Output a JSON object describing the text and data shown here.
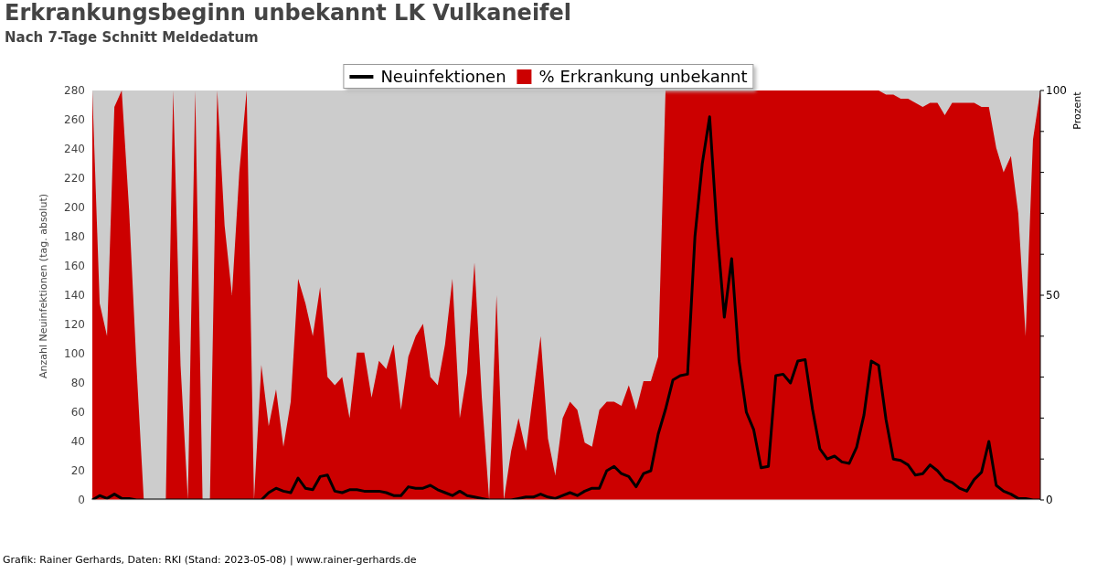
{
  "chart_data": {
    "type": "line",
    "title": "Erkrankungsbeginn unbekannt LK Vulkaneifel",
    "subtitle": "Nach 7-Tage Schnitt Meldedatum",
    "ylabel": "Anzahl Neuinfektionen (tag. absolut)",
    "y2label": "Prozent",
    "categories": [
      null,
      null,
      null,
      null,
      null,
      null,
      null,
      null,
      null,
      null,
      null,
      null,
      null,
      null,
      null,
      null,
      null,
      null,
      null,
      null,
      null,
      null,
      null,
      null,
      null,
      null,
      null,
      null,
      null,
      null,
      null,
      null,
      null,
      null,
      null,
      null,
      null,
      null,
      null,
      null,
      null,
      null,
      null,
      null,
      null,
      null,
      null,
      null,
      null,
      null,
      null,
      null,
      null,
      null,
      null,
      null,
      null,
      null,
      null,
      null,
      null,
      null,
      null,
      null,
      null,
      null,
      null,
      null,
      null,
      null,
      null,
      null,
      null,
      null,
      null,
      null,
      null,
      null,
      null,
      null,
      null,
      null,
      null,
      null,
      null,
      null,
      null,
      null,
      null,
      null,
      null,
      null,
      null,
      null,
      null,
      null,
      null,
      null,
      null,
      null,
      null,
      null,
      null,
      null,
      null,
      null,
      null,
      null,
      null,
      null,
      null,
      null,
      null,
      null,
      null,
      null,
      null,
      null,
      null,
      null,
      null,
      null,
      null,
      null,
      null,
      null,
      null,
      null,
      null,
      null
    ],
    "series": [
      {
        "name": "% Erkrankung unbekannt",
        "type": "area",
        "axis": "y2",
        "color": "#cc0000",
        "values": [
          100,
          48,
          40,
          96,
          100,
          71,
          33,
          0,
          0,
          0,
          0,
          100,
          33,
          0,
          100,
          0,
          0,
          100,
          67,
          50,
          80,
          100,
          0,
          33,
          18,
          27,
          13,
          24,
          54,
          48,
          40,
          52,
          30,
          28,
          30,
          20,
          36,
          36,
          25,
          34,
          32,
          38,
          22,
          35,
          40,
          43,
          30,
          28,
          38,
          54,
          20,
          31,
          58,
          25,
          0,
          50,
          0,
          12,
          20,
          12,
          26,
          40,
          15,
          6,
          20,
          24,
          22,
          14,
          13,
          22,
          24,
          24,
          23,
          28,
          22,
          29,
          29,
          35,
          100,
          100,
          100,
          100,
          100,
          100,
          100,
          100,
          100,
          100,
          100,
          100,
          100,
          100,
          100,
          100,
          100,
          100,
          100,
          100,
          100,
          100,
          100,
          100,
          100,
          100,
          100,
          100,
          100,
          100,
          99,
          99,
          98,
          98,
          97,
          96,
          97,
          97,
          94,
          97,
          97,
          97,
          97,
          96,
          96,
          86,
          80,
          84,
          70,
          40,
          88,
          100
        ]
      },
      {
        "name": "Neuinfektionen",
        "type": "line",
        "axis": "y",
        "color": "#000000",
        "values": [
          0,
          3,
          1,
          4,
          1,
          1,
          0,
          0,
          0,
          0,
          0,
          0,
          0,
          0,
          0,
          0,
          0,
          0,
          0,
          0,
          0,
          0,
          0,
          0,
          5,
          8,
          6,
          5,
          15,
          8,
          7,
          16,
          17,
          6,
          5,
          7,
          7,
          6,
          6,
          6,
          5,
          3,
          3,
          9,
          8,
          8,
          10,
          7,
          5,
          3,
          6,
          3,
          2,
          1,
          0,
          0,
          0,
          0,
          1,
          2,
          2,
          4,
          2,
          1,
          3,
          5,
          3,
          6,
          8,
          8,
          20,
          23,
          18,
          16,
          9,
          18,
          20,
          45,
          62,
          82,
          85,
          86,
          180,
          230,
          262,
          185,
          125,
          165,
          95,
          60,
          48,
          22,
          23,
          85,
          86,
          80,
          95,
          96,
          62,
          35,
          28,
          30,
          26,
          25,
          36,
          58,
          95,
          92,
          55,
          28,
          27,
          24,
          17,
          18,
          24,
          20,
          14,
          12,
          8,
          6,
          14,
          19,
          40,
          10,
          6,
          4,
          1,
          1,
          0,
          0
        ]
      }
    ],
    "ylim": [
      0,
      280
    ],
    "yticks": [
      0,
      20,
      40,
      60,
      80,
      100,
      120,
      140,
      160,
      180,
      200,
      220,
      240,
      260,
      280
    ],
    "y2lim": [
      0,
      100
    ],
    "y2ticks": [
      0,
      {
        "value": 10,
        "label": null
      },
      {
        "value": 20,
        "label": null
      },
      {
        "value": 30,
        "label": null
      },
      {
        "value": 40,
        "label": null
      },
      50,
      {
        "value": 60,
        "label": null
      },
      {
        "value": 70,
        "label": null
      },
      {
        "value": 80,
        "label": null
      },
      {
        "value": 90,
        "label": null
      },
      100
    ],
    "legend": "top",
    "marker": "none",
    "annotations": [
      "Grafik: Rainer Gerhards, Daten: RKI (Stand: 2023-05-08) | www.rainer-gerhards.de"
    ]
  }
}
